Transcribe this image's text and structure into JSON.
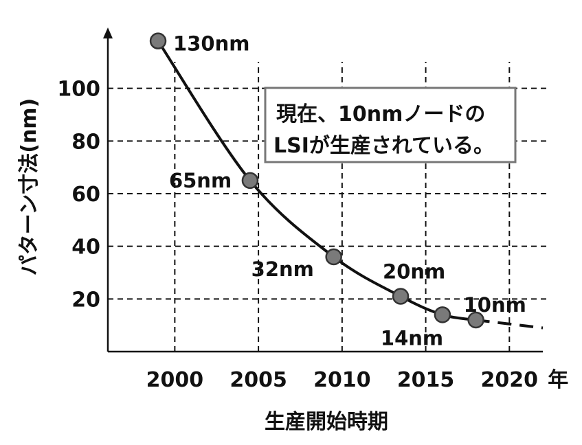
{
  "chart_data": {
    "type": "line",
    "xlabel": "生産開始時期",
    "ylabel": "パターン寸法(nm)",
    "x_unit_suffix": "年",
    "xlim": [
      1996,
      2022
    ],
    "ylim": [
      0,
      120
    ],
    "x_ticks": [
      2000,
      2005,
      2010,
      2015,
      2020
    ],
    "y_ticks": [
      20,
      40,
      60,
      80,
      100
    ],
    "grid": true,
    "series": [
      {
        "points": [
          {
            "x": 1999,
            "y": 118,
            "label": "130nm"
          },
          {
            "x": 2004.5,
            "y": 65,
            "label": "65nm"
          },
          {
            "x": 2009.5,
            "y": 36,
            "label": "32nm"
          },
          {
            "x": 2013.5,
            "y": 21,
            "label": "20nm"
          },
          {
            "x": 2016,
            "y": 14,
            "label": "14nm"
          },
          {
            "x": 2018,
            "y": 12,
            "label": "10nm"
          }
        ],
        "projection_end": {
          "x": 2022,
          "y": 9
        }
      }
    ],
    "annotation": {
      "line1": "現在、10nmノードの",
      "line2": "LSIが生産されている。"
    }
  }
}
